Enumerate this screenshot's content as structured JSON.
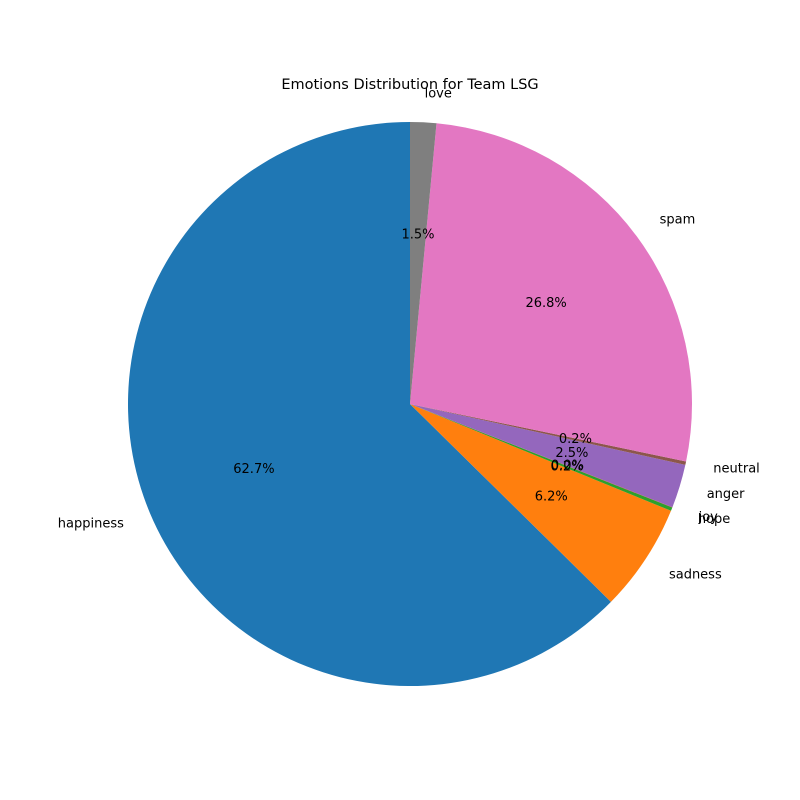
{
  "chart_data": {
    "type": "pie",
    "title": "Emotions Distribution for Team LSG",
    "start_angle_deg": 90,
    "direction": "counterclockwise",
    "slices": [
      {
        "label": "happiness",
        "value": 62.7,
        "pct_label": "62.7%",
        "color": "#1f77b4"
      },
      {
        "label": "sadness",
        "value": 6.2,
        "pct_label": "6.2%",
        "color": "#ff7f0e"
      },
      {
        "label": "hope",
        "value": 0.2,
        "pct_label": "0.2%",
        "color": "#2ca02c"
      },
      {
        "label": "joy",
        "value": 0.02,
        "pct_label": "0.0%",
        "color": "#d62728"
      },
      {
        "label": "anger",
        "value": 2.5,
        "pct_label": "2.5%",
        "color": "#9467bd"
      },
      {
        "label": "neutral",
        "value": 0.2,
        "pct_label": "0.2%",
        "color": "#8c564b"
      },
      {
        "label": "spam",
        "value": 26.8,
        "pct_label": "26.8%",
        "color": "#e377c2"
      },
      {
        "label": "love",
        "value": 1.5,
        "pct_label": "1.5%",
        "color": "#7f7f7f"
      }
    ]
  }
}
